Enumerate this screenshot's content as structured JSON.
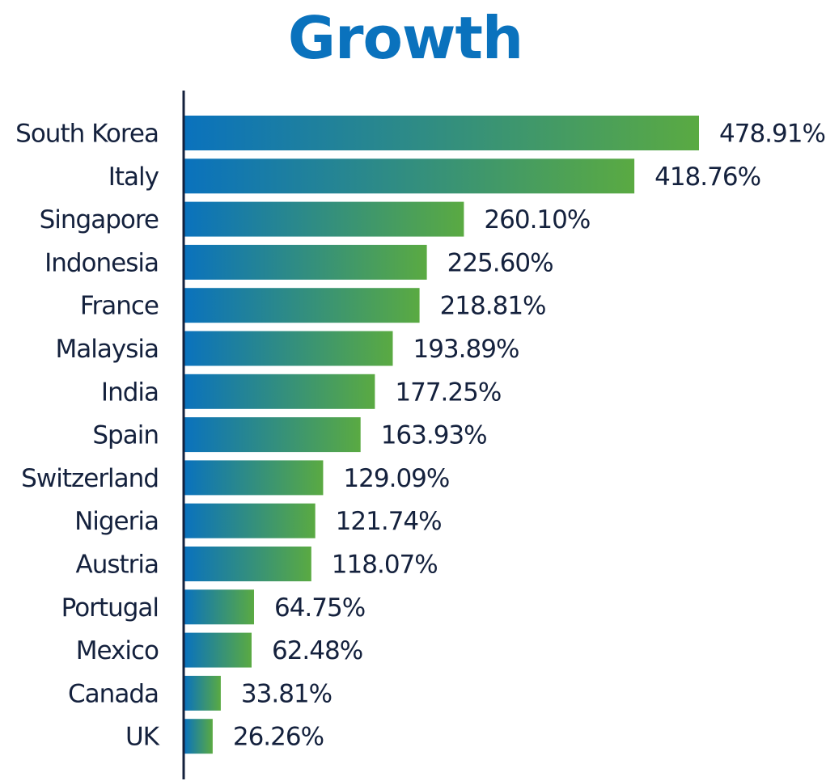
{
  "chart_data": {
    "type": "bar",
    "orientation": "horizontal",
    "title": "Growth",
    "xlabel": "",
    "ylabel": "",
    "categories": [
      "South Korea",
      "Italy",
      "Singapore",
      "Indonesia",
      "France",
      "Malaysia",
      "India",
      "Spain",
      "Switzerland",
      "Nigeria",
      "Austria",
      "Portugal",
      "Mexico",
      "Canada",
      "UK"
    ],
    "values": [
      478.91,
      418.76,
      260.1,
      225.6,
      218.81,
      193.89,
      177.25,
      163.93,
      129.09,
      121.74,
      118.07,
      64.75,
      62.48,
      33.81,
      26.26
    ],
    "value_labels": [
      "478.91%",
      "418.76%",
      "260.10%",
      "225.60%",
      "218.81%",
      "193.89%",
      "177.25%",
      "163.93%",
      "129.09%",
      "121.74%",
      "118.07%",
      "64.75%",
      "62.48%",
      "33.81%",
      "26.26%"
    ],
    "grid": false,
    "legend": "none"
  },
  "colors": {
    "title": "#0a72bd",
    "text": "#14213d",
    "axis": "#14213d",
    "bar_gradient_start": "#0a72bd",
    "bar_gradient_end": "#5aaa42"
  }
}
